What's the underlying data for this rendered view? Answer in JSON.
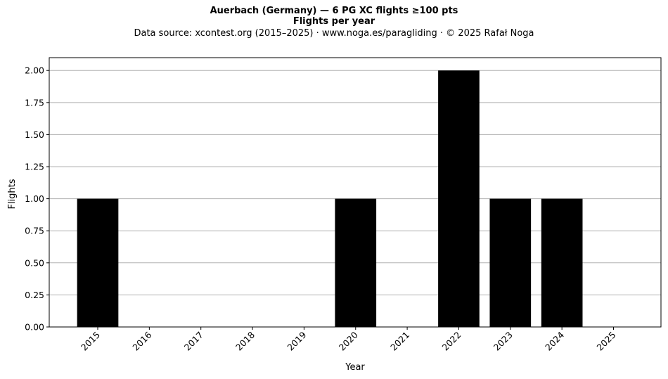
{
  "header": {
    "title": "Auerbach (Germany)  —  6 PG XC flights ≥100 pts",
    "subtitle": "Flights per year",
    "source": "Data source: xcontest.org (2015–2025)  ·  www.noga.es/paragliding  ·  © 2025 Rafał Noga"
  },
  "chart_data": {
    "type": "bar",
    "title": "Auerbach (Germany)  —  6 PG XC flights ≥100 pts",
    "subtitle": "Flights per year",
    "xlabel": "Year",
    "ylabel": "Flights",
    "categories": [
      "2015",
      "2016",
      "2017",
      "2018",
      "2019",
      "2020",
      "2021",
      "2022",
      "2023",
      "2024",
      "2025"
    ],
    "values": [
      1,
      0,
      0,
      0,
      0,
      1,
      0,
      2,
      1,
      1,
      0
    ],
    "ylim": [
      0,
      2.1
    ],
    "yticks": [
      "0.00",
      "0.25",
      "0.50",
      "0.75",
      "1.00",
      "1.25",
      "1.50",
      "1.75",
      "2.00"
    ],
    "grid": "horizontal",
    "bar_color": "#000000",
    "grid_color": "#b0b0b0"
  }
}
